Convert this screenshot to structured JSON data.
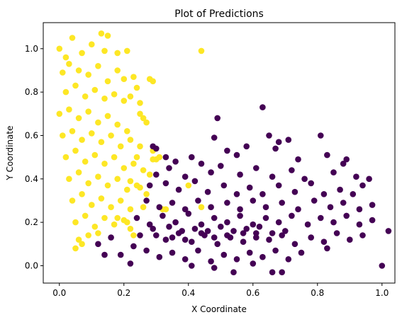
{
  "chart_data": {
    "type": "scatter",
    "title": "Plot of Predictions",
    "xlabel": "X Coordinate",
    "ylabel": "Y Coordinate",
    "xlim": [
      -0.05,
      1.04
    ],
    "ylim": [
      -0.08,
      1.12
    ],
    "xticks": [
      "0.0",
      "0.2",
      "0.4",
      "0.6",
      "0.8",
      "1.0"
    ],
    "yticks": [
      "0.0",
      "0.2",
      "0.4",
      "0.6",
      "0.8",
      "1.0"
    ],
    "grid": false,
    "legend": "none",
    "colors": {
      "class_0": "#440154",
      "class_1": "#fde725"
    },
    "series": [
      {
        "class": "class_1",
        "color": "#fde725",
        "points": [
          [
            0.0,
            1.0
          ],
          [
            0.04,
            1.05
          ],
          [
            0.02,
            0.96
          ],
          [
            0.07,
            0.98
          ],
          [
            0.1,
            1.02
          ],
          [
            0.13,
            1.07
          ],
          [
            0.15,
            1.06
          ],
          [
            0.14,
            0.99
          ],
          [
            0.21,
            0.99
          ],
          [
            0.18,
            0.98
          ],
          [
            0.01,
            0.89
          ],
          [
            0.03,
            0.93
          ],
          [
            0.06,
            0.9
          ],
          [
            0.09,
            0.88
          ],
          [
            0.12,
            0.92
          ],
          [
            0.15,
            0.85
          ],
          [
            0.18,
            0.9
          ],
          [
            0.2,
            0.86
          ],
          [
            0.23,
            0.87
          ],
          [
            0.28,
            0.86
          ],
          [
            0.29,
            0.85
          ],
          [
            0.02,
            0.8
          ],
          [
            0.05,
            0.83
          ],
          [
            0.08,
            0.78
          ],
          [
            0.11,
            0.81
          ],
          [
            0.14,
            0.77
          ],
          [
            0.17,
            0.79
          ],
          [
            0.2,
            0.76
          ],
          [
            0.22,
            0.78
          ],
          [
            0.25,
            0.75
          ],
          [
            0.24,
            0.82
          ],
          [
            0.0,
            0.7
          ],
          [
            0.03,
            0.72
          ],
          [
            0.06,
            0.68
          ],
          [
            0.09,
            0.71
          ],
          [
            0.12,
            0.66
          ],
          [
            0.15,
            0.69
          ],
          [
            0.18,
            0.65
          ],
          [
            0.21,
            0.62
          ],
          [
            0.25,
            0.7
          ],
          [
            0.26,
            0.68
          ],
          [
            0.27,
            0.66
          ],
          [
            0.01,
            0.6
          ],
          [
            0.04,
            0.62
          ],
          [
            0.07,
            0.58
          ],
          [
            0.1,
            0.61
          ],
          [
            0.13,
            0.57
          ],
          [
            0.16,
            0.6
          ],
          [
            0.19,
            0.55
          ],
          [
            0.22,
            0.58
          ],
          [
            0.25,
            0.55
          ],
          [
            0.29,
            0.53
          ],
          [
            0.3,
            0.49
          ],
          [
            0.02,
            0.5
          ],
          [
            0.05,
            0.53
          ],
          [
            0.08,
            0.48
          ],
          [
            0.11,
            0.51
          ],
          [
            0.14,
            0.47
          ],
          [
            0.17,
            0.5
          ],
          [
            0.2,
            0.45
          ],
          [
            0.23,
            0.47
          ],
          [
            0.26,
            0.44
          ],
          [
            0.28,
            0.42
          ],
          [
            0.24,
            0.5
          ],
          [
            0.03,
            0.4
          ],
          [
            0.06,
            0.43
          ],
          [
            0.09,
            0.38
          ],
          [
            0.12,
            0.41
          ],
          [
            0.15,
            0.37
          ],
          [
            0.18,
            0.4
          ],
          [
            0.21,
            0.35
          ],
          [
            0.24,
            0.37
          ],
          [
            0.25,
            0.36
          ],
          [
            0.27,
            0.33
          ],
          [
            0.22,
            0.39
          ],
          [
            0.04,
            0.3
          ],
          [
            0.07,
            0.33
          ],
          [
            0.1,
            0.28
          ],
          [
            0.13,
            0.31
          ],
          [
            0.16,
            0.27
          ],
          [
            0.19,
            0.3
          ],
          [
            0.22,
            0.26
          ],
          [
            0.26,
            0.27
          ],
          [
            0.32,
            0.26
          ],
          [
            0.33,
            0.26
          ],
          [
            0.05,
            0.2
          ],
          [
            0.08,
            0.23
          ],
          [
            0.11,
            0.18
          ],
          [
            0.14,
            0.22
          ],
          [
            0.17,
            0.19
          ],
          [
            0.2,
            0.21
          ],
          [
            0.22,
            0.17
          ],
          [
            0.21,
            0.2
          ],
          [
            0.23,
            0.14
          ],
          [
            0.06,
            0.12
          ],
          [
            0.07,
            0.1
          ],
          [
            0.09,
            0.14
          ],
          [
            0.05,
            0.08
          ],
          [
            0.12,
            0.15
          ],
          [
            0.18,
            0.22
          ],
          [
            0.44,
            0.99
          ],
          [
            0.44,
            0.27
          ],
          [
            0.4,
            0.37
          ],
          [
            0.29,
            0.49
          ],
          [
            0.31,
            0.5
          ]
        ]
      },
      {
        "class": "class_0",
        "color": "#440154",
        "points": [
          [
            0.63,
            0.73
          ],
          [
            0.49,
            0.68
          ],
          [
            0.29,
            0.55
          ],
          [
            0.3,
            0.54
          ],
          [
            0.65,
            0.6
          ],
          [
            0.81,
            0.6
          ],
          [
            0.71,
            0.58
          ],
          [
            0.68,
            0.57
          ],
          [
            0.48,
            0.59
          ],
          [
            0.58,
            0.55
          ],
          [
            0.33,
            0.5
          ],
          [
            0.36,
            0.48
          ],
          [
            0.41,
            0.5
          ],
          [
            0.52,
            0.53
          ],
          [
            0.55,
            0.51
          ],
          [
            0.67,
            0.54
          ],
          [
            0.74,
            0.49
          ],
          [
            0.83,
            0.51
          ],
          [
            0.88,
            0.47
          ],
          [
            0.89,
            0.49
          ],
          [
            0.3,
            0.42
          ],
          [
            0.34,
            0.45
          ],
          [
            0.39,
            0.41
          ],
          [
            0.44,
            0.47
          ],
          [
            0.47,
            0.43
          ],
          [
            0.5,
            0.46
          ],
          [
            0.56,
            0.42
          ],
          [
            0.61,
            0.45
          ],
          [
            0.66,
            0.41
          ],
          [
            0.72,
            0.44
          ],
          [
            0.76,
            0.4
          ],
          [
            0.85,
            0.43
          ],
          [
            0.92,
            0.41
          ],
          [
            0.96,
            0.4
          ],
          [
            0.94,
            0.37
          ],
          [
            0.28,
            0.37
          ],
          [
            0.33,
            0.38
          ],
          [
            0.37,
            0.35
          ],
          [
            0.42,
            0.39
          ],
          [
            0.46,
            0.34
          ],
          [
            0.51,
            0.37
          ],
          [
            0.55,
            0.33
          ],
          [
            0.59,
            0.36
          ],
          [
            0.63,
            0.33
          ],
          [
            0.68,
            0.37
          ],
          [
            0.73,
            0.34
          ],
          [
            0.78,
            0.38
          ],
          [
            0.82,
            0.33
          ],
          [
            0.87,
            0.35
          ],
          [
            0.91,
            0.33
          ],
          [
            0.27,
            0.3
          ],
          [
            0.31,
            0.27
          ],
          [
            0.35,
            0.29
          ],
          [
            0.39,
            0.26
          ],
          [
            0.43,
            0.3
          ],
          [
            0.47,
            0.27
          ],
          [
            0.52,
            0.29
          ],
          [
            0.56,
            0.26
          ],
          [
            0.6,
            0.3
          ],
          [
            0.64,
            0.27
          ],
          [
            0.69,
            0.29
          ],
          [
            0.74,
            0.26
          ],
          [
            0.79,
            0.3
          ],
          [
            0.84,
            0.27
          ],
          [
            0.88,
            0.29
          ],
          [
            0.93,
            0.26
          ],
          [
            0.97,
            0.28
          ],
          [
            0.24,
            0.22
          ],
          [
            0.28,
            0.19
          ],
          [
            0.32,
            0.23
          ],
          [
            0.36,
            0.2
          ],
          [
            0.4,
            0.24
          ],
          [
            0.44,
            0.19
          ],
          [
            0.48,
            0.22
          ],
          [
            0.52,
            0.2
          ],
          [
            0.56,
            0.23
          ],
          [
            0.6,
            0.19
          ],
          [
            0.64,
            0.22
          ],
          [
            0.68,
            0.2
          ],
          [
            0.72,
            0.23
          ],
          [
            0.77,
            0.19
          ],
          [
            0.81,
            0.22
          ],
          [
            0.85,
            0.2
          ],
          [
            0.89,
            0.23
          ],
          [
            0.93,
            0.19
          ],
          [
            0.97,
            0.21
          ],
          [
            0.25,
            0.14
          ],
          [
            0.29,
            0.17
          ],
          [
            0.33,
            0.12
          ],
          [
            0.37,
            0.15
          ],
          [
            0.41,
            0.11
          ],
          [
            0.45,
            0.14
          ],
          [
            0.49,
            0.1
          ],
          [
            0.53,
            0.13
          ],
          [
            0.57,
            0.11
          ],
          [
            0.61,
            0.15
          ],
          [
            0.65,
            0.12
          ],
          [
            0.69,
            0.14
          ],
          [
            0.73,
            0.1
          ],
          [
            0.78,
            0.13
          ],
          [
            0.82,
            0.11
          ],
          [
            0.86,
            0.15
          ],
          [
            0.9,
            0.12
          ],
          [
            0.94,
            0.14
          ],
          [
            0.19,
            0.05
          ],
          [
            0.23,
            0.09
          ],
          [
            0.27,
            0.07
          ],
          [
            0.31,
            0.04
          ],
          [
            0.35,
            0.06
          ],
          [
            0.39,
            0.03
          ],
          [
            0.43,
            0.07
          ],
          [
            0.47,
            0.02
          ],
          [
            0.51,
            0.05
          ],
          [
            0.55,
            0.03
          ],
          [
            0.59,
            0.06
          ],
          [
            0.63,
            0.04
          ],
          [
            0.67,
            0.07
          ],
          [
            0.71,
            0.03
          ],
          [
            0.75,
            0.06
          ],
          [
            0.83,
            0.08
          ],
          [
            0.22,
            0.01
          ],
          [
            0.41,
            0.0
          ],
          [
            0.48,
            -0.01
          ],
          [
            0.54,
            -0.03
          ],
          [
            0.66,
            -0.03
          ],
          [
            0.69,
            -0.03
          ],
          [
            0.6,
            0.01
          ],
          [
            0.14,
            0.05
          ],
          [
            0.12,
            0.1
          ],
          [
            0.16,
            0.13
          ],
          [
            1.0,
            0.0
          ],
          [
            1.02,
            0.16
          ],
          [
            0.34,
            0.18
          ],
          [
            0.38,
            0.16
          ],
          [
            0.42,
            0.17
          ],
          [
            0.46,
            0.16
          ],
          [
            0.5,
            0.18
          ],
          [
            0.54,
            0.16
          ],
          [
            0.58,
            0.17
          ],
          [
            0.62,
            0.18
          ],
          [
            0.3,
            0.14
          ],
          [
            0.35,
            0.13
          ],
          [
            0.39,
            0.12
          ],
          [
            0.44,
            0.15
          ],
          [
            0.48,
            0.13
          ],
          [
            0.52,
            0.14
          ],
          [
            0.57,
            0.15
          ],
          [
            0.61,
            0.13
          ],
          [
            0.66,
            0.15
          ],
          [
            0.7,
            0.16
          ]
        ]
      }
    ]
  }
}
